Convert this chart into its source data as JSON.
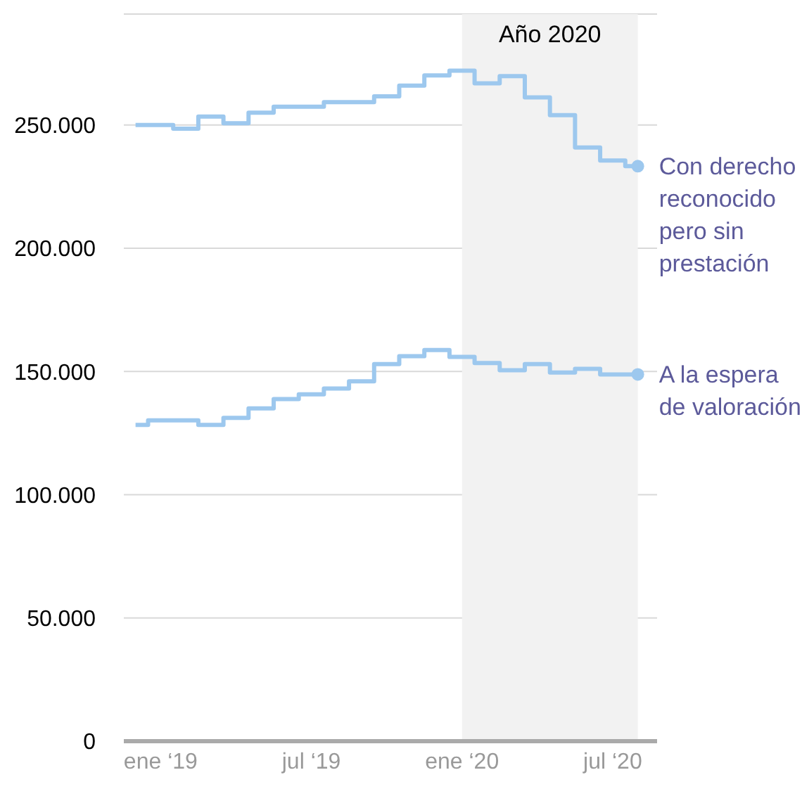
{
  "chart_data": {
    "type": "step",
    "x": [
      "2018-12",
      "2019-01",
      "2019-02",
      "2019-03",
      "2019-04",
      "2019-05",
      "2019-06",
      "2019-07",
      "2019-08",
      "2019-09",
      "2019-10",
      "2019-11",
      "2019-12",
      "2020-01",
      "2020-02",
      "2020-03",
      "2020-04",
      "2020-05",
      "2020-06",
      "2020-07",
      "2020-08"
    ],
    "series": [
      {
        "name": "Con derecho reconocido pero sin prestación",
        "color": "#9dc8ee",
        "values": [
          250000,
          250000,
          248500,
          253400,
          250700,
          255000,
          257400,
          257400,
          259300,
          259300,
          261600,
          266000,
          270100,
          272000,
          266900,
          269800,
          261200,
          254000,
          240900,
          235600,
          233300
        ]
      },
      {
        "name": "A la espera de valoración",
        "color": "#9dc8ee",
        "values": [
          128300,
          130200,
          130200,
          128300,
          131200,
          135000,
          138800,
          140700,
          143100,
          146000,
          153000,
          156200,
          158700,
          155900,
          153400,
          150500,
          153000,
          149600,
          151100,
          148800,
          148800
        ]
      }
    ],
    "xlim": [
      "2018-11-17",
      "2020-08-24"
    ],
    "xticks": [
      {
        "value": "2019-01",
        "label": "ene ‘19"
      },
      {
        "value": "2019-07",
        "label": "jul ‘19"
      },
      {
        "value": "2020-01",
        "label": "ene ‘20"
      },
      {
        "value": "2020-07",
        "label": "jul ‘20"
      }
    ],
    "ylim": [
      0,
      295000
    ],
    "yticks": [
      0,
      {
        "value": 50000,
        "label": "50.000"
      },
      {
        "value": 100000,
        "label": "100.000"
      },
      {
        "value": 150000,
        "label": "150.000"
      },
      {
        "value": 200000,
        "label": "200.000"
      },
      {
        "value": 250000,
        "label": "250.000"
      }
    ],
    "bands": [
      {
        "axis": "x",
        "from": "2020-01",
        "to": "2020-08",
        "label": "Año 2020",
        "color": "#f2f2f2"
      }
    ],
    "grid": "y",
    "legend": false
  }
}
